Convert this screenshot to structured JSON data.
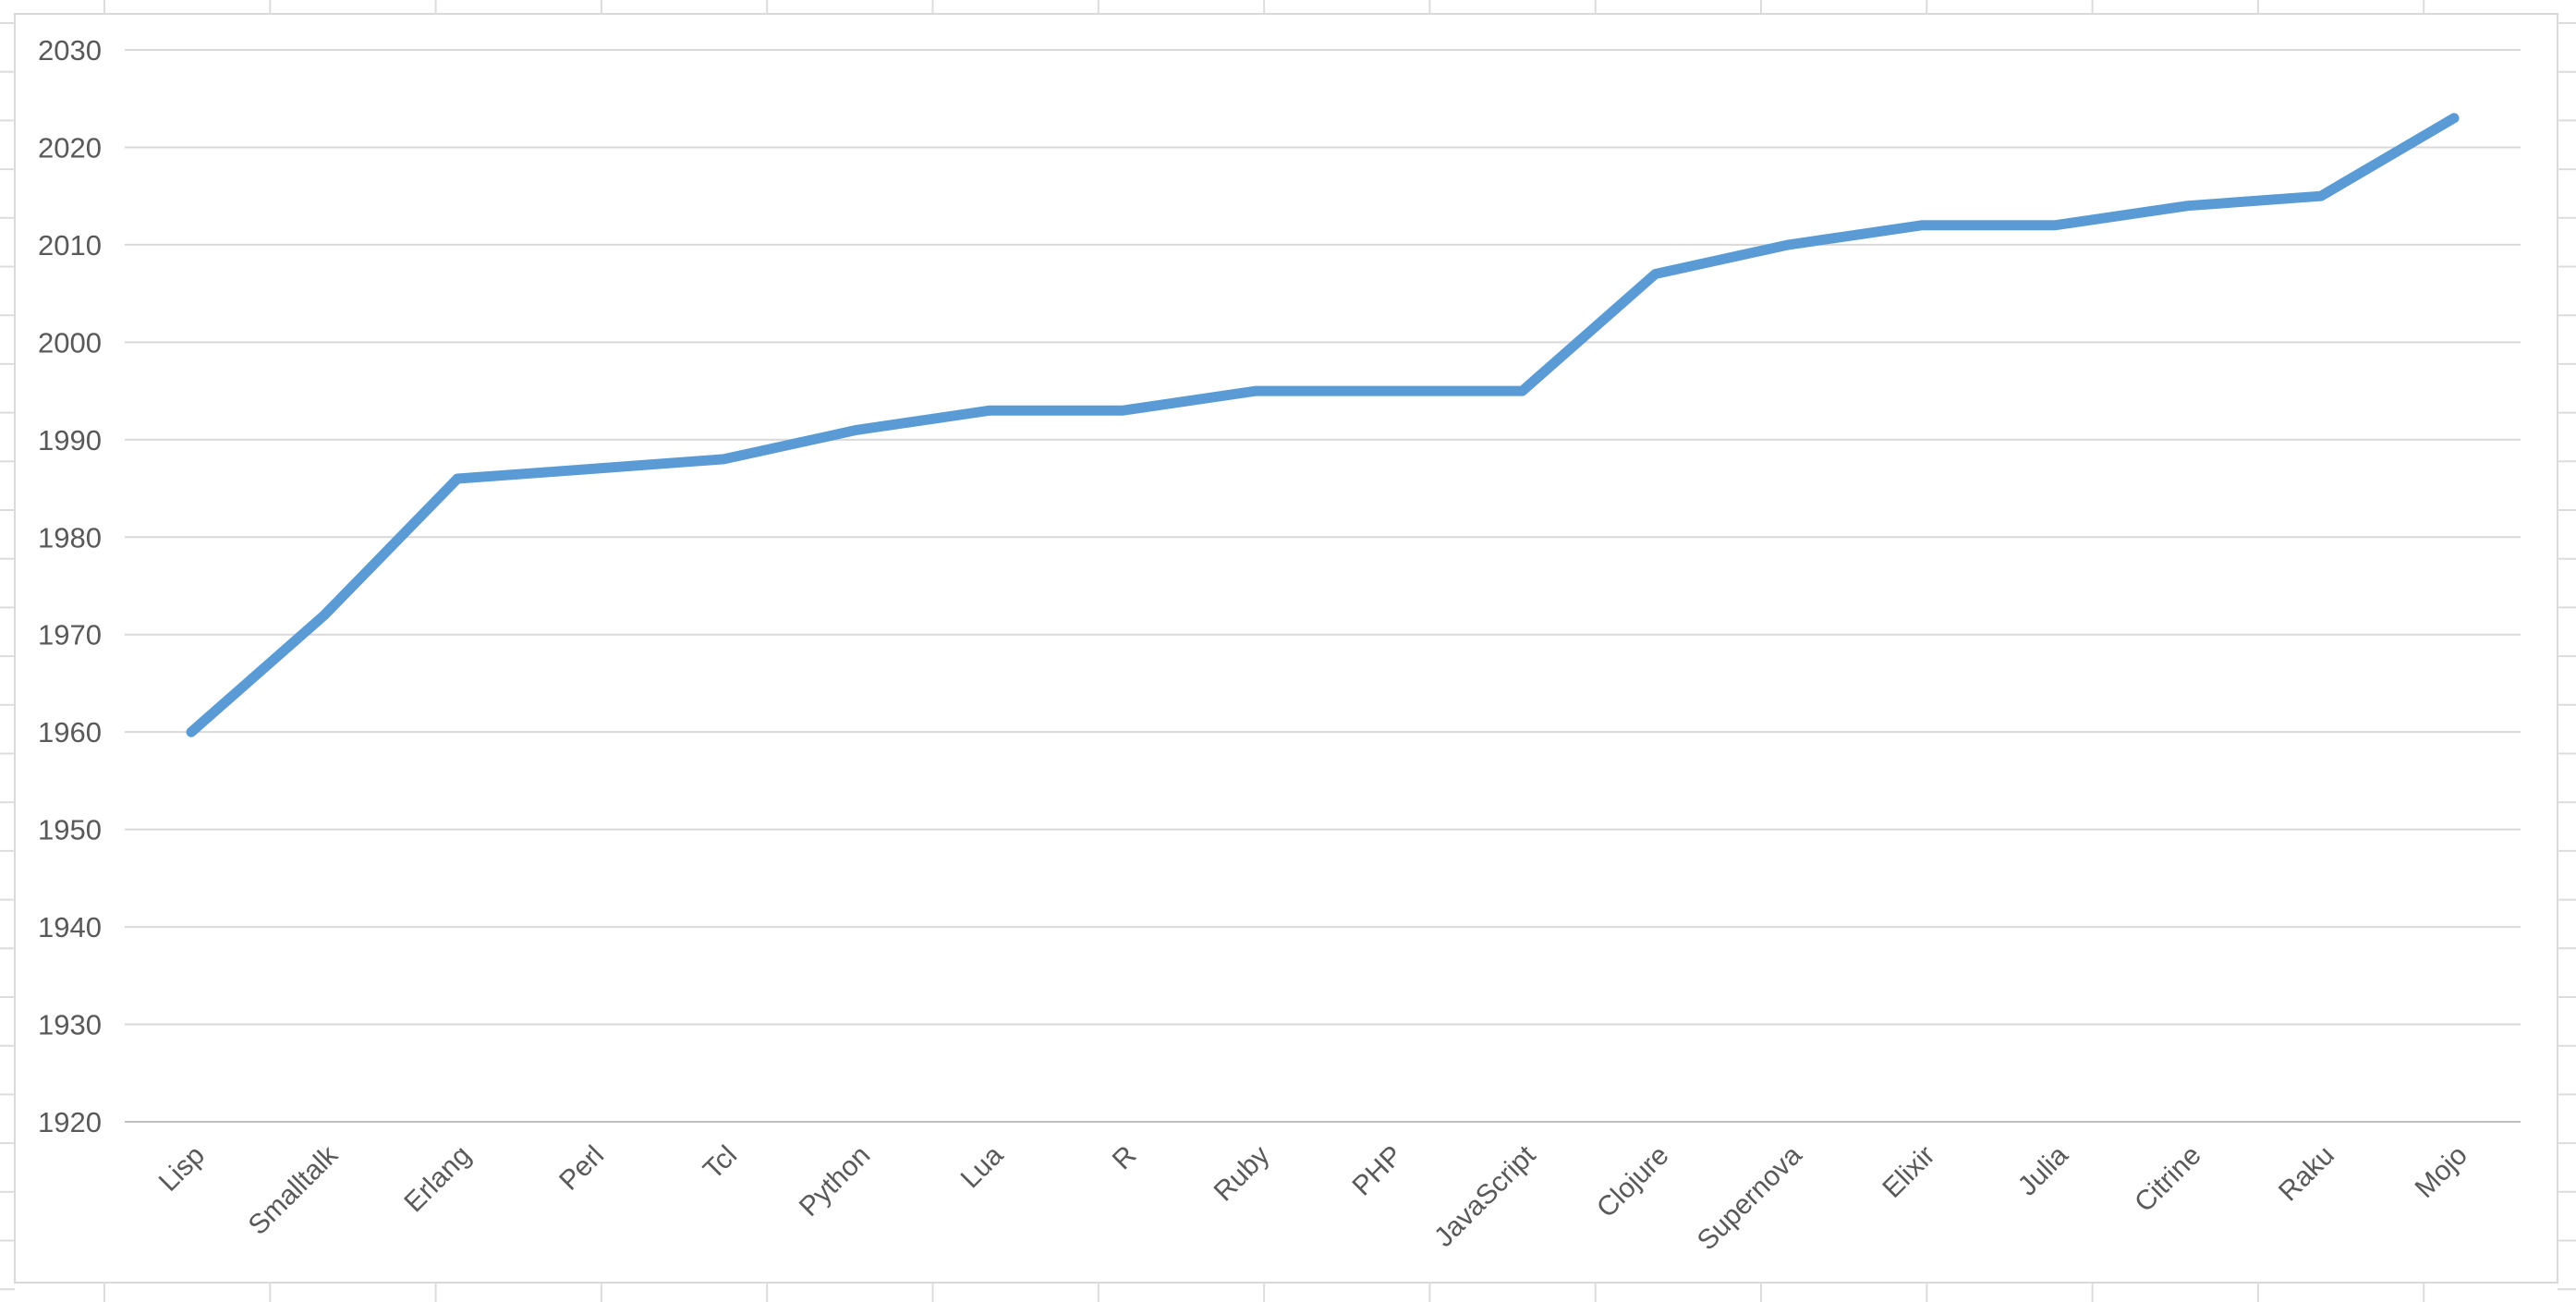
{
  "chart_data": {
    "type": "line",
    "categories": [
      "Lisp",
      "Smalltalk",
      "Erlang",
      "Perl",
      "Tcl",
      "Python",
      "Lua",
      "R",
      "Ruby",
      "PHP",
      "JavaScript",
      "Clojure",
      "Supernova",
      "Elixir",
      "Julia",
      "Citrine",
      "Raku",
      "Mojo"
    ],
    "values": [
      1960,
      1972,
      1986,
      1987,
      1988,
      1991,
      1993,
      1993,
      1995,
      1995,
      1995,
      2007,
      2010,
      2012,
      2012,
      2014,
      2015,
      2023
    ],
    "title": "",
    "xlabel": "",
    "ylabel": "",
    "ylim": [
      1920,
      2030
    ],
    "y_ticks": [
      2030,
      2020,
      2010,
      2000,
      1990,
      1980,
      1970,
      1960,
      1950,
      1940,
      1930,
      1920
    ],
    "grid": true,
    "legend": false,
    "x_label_rotation_deg": -45
  },
  "colors": {
    "background": "#FFFFFF",
    "series_line": "#5B9BD5",
    "gridline": "#D9D9D9",
    "axis_line": "#BFBFBF",
    "tick_text": "#595959",
    "chart_border": "#D9D9D9",
    "sheet_gridline": "#DCDCDC"
  }
}
